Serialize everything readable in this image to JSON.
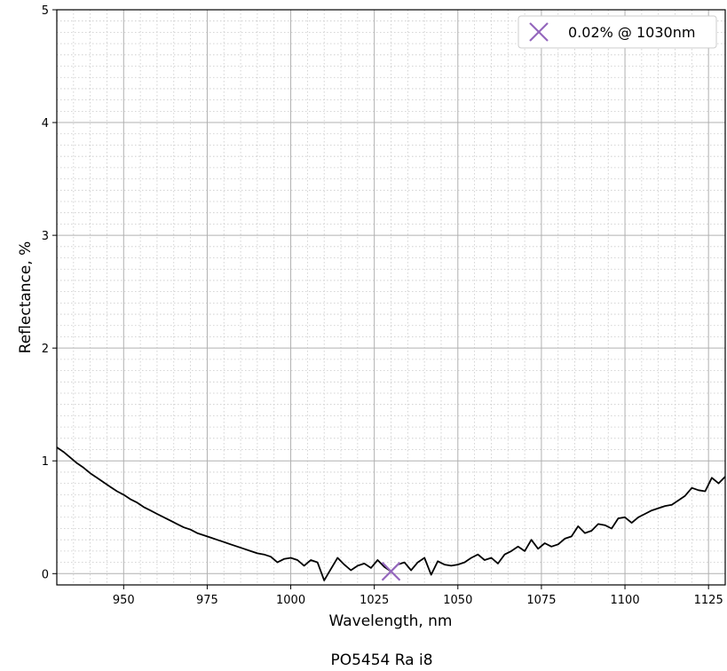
{
  "chart_data": {
    "type": "line",
    "xlabel": "Wavelength, nm",
    "ylabel": "Reflectance, %",
    "caption": "PO5454 Ra i8",
    "xlim": [
      930,
      1130
    ],
    "ylim": [
      -0.1,
      5
    ],
    "xticks": [
      950,
      975,
      1000,
      1025,
      1050,
      1075,
      1100,
      1125
    ],
    "yticks": [
      0,
      1,
      2,
      3,
      4,
      5
    ],
    "grid": true,
    "minor_grid": true,
    "legend_position": "top-right",
    "series": [
      {
        "color": "#000000",
        "x": [
          930,
          932,
          934,
          936,
          938,
          940,
          942,
          944,
          946,
          948,
          950,
          952,
          954,
          956,
          958,
          960,
          962,
          964,
          966,
          968,
          970,
          972,
          974,
          976,
          978,
          980,
          982,
          984,
          986,
          988,
          990,
          992,
          994,
          996,
          998,
          1000,
          1002,
          1004,
          1006,
          1008,
          1010,
          1012,
          1014,
          1016,
          1018,
          1020,
          1022,
          1024,
          1026,
          1028,
          1030,
          1032,
          1034,
          1036,
          1038,
          1040,
          1042,
          1044,
          1046,
          1048,
          1050,
          1052,
          1054,
          1056,
          1058,
          1060,
          1062,
          1064,
          1066,
          1068,
          1070,
          1072,
          1074,
          1076,
          1078,
          1080,
          1082,
          1084,
          1086,
          1088,
          1090,
          1092,
          1094,
          1096,
          1098,
          1100,
          1102,
          1104,
          1106,
          1108,
          1110,
          1112,
          1114,
          1116,
          1118,
          1120,
          1122,
          1124,
          1126,
          1128,
          1130
        ],
        "y": [
          1.12,
          1.08,
          1.03,
          0.98,
          0.94,
          0.89,
          0.85,
          0.81,
          0.77,
          0.73,
          0.7,
          0.66,
          0.63,
          0.59,
          0.56,
          0.53,
          0.5,
          0.47,
          0.44,
          0.41,
          0.39,
          0.36,
          0.34,
          0.32,
          0.3,
          0.28,
          0.26,
          0.24,
          0.22,
          0.2,
          0.18,
          0.17,
          0.15,
          0.1,
          0.13,
          0.14,
          0.12,
          0.07,
          0.12,
          0.1,
          -0.06,
          0.04,
          0.14,
          0.08,
          0.03,
          0.07,
          0.09,
          0.05,
          0.12,
          0.06,
          0.02,
          0.08,
          0.1,
          0.03,
          0.1,
          0.14,
          -0.01,
          0.11,
          0.08,
          0.07,
          0.08,
          0.1,
          0.14,
          0.17,
          0.12,
          0.14,
          0.09,
          0.17,
          0.2,
          0.24,
          0.2,
          0.3,
          0.22,
          0.27,
          0.24,
          0.26,
          0.31,
          0.33,
          0.42,
          0.36,
          0.38,
          0.44,
          0.43,
          0.4,
          0.49,
          0.5,
          0.45,
          0.5,
          0.53,
          0.56,
          0.58,
          0.6,
          0.61,
          0.65,
          0.69,
          0.76,
          0.74,
          0.73,
          0.85,
          0.8,
          0.86
        ]
      }
    ],
    "marker": {
      "x": 1030,
      "y": 0.02,
      "symbol": "x",
      "color": "#9467bd",
      "label": "0.02% @ 1030nm"
    }
  }
}
